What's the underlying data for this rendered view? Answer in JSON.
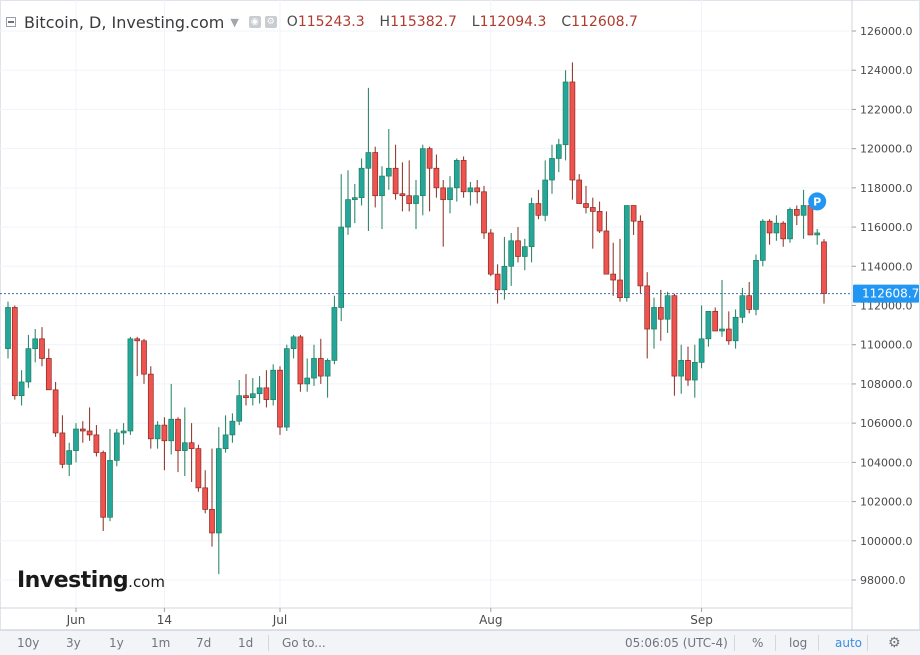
{
  "header": {
    "title": "Bitcoin, D, Investing.com",
    "ohlc": [
      {
        "key": "O",
        "value": "115243.3"
      },
      {
        "key": "H",
        "value": "115382.7"
      },
      {
        "key": "L",
        "value": "112094.3"
      },
      {
        "key": "C",
        "value": "112608.7"
      }
    ]
  },
  "watermark": {
    "brand": "Investing",
    "tld": ".com"
  },
  "last_price_label": "112608.7",
  "marker_label": "P",
  "colors": {
    "up": "#26a69a",
    "down": "#ef5350",
    "up_border": "#1e7f5c",
    "down_border": "#8a2a1f",
    "accent": "#2196f3",
    "price_line": "#3f6fa3"
  },
  "toolbar": {
    "ranges": [
      "10y",
      "3y",
      "1y",
      "1m",
      "7d",
      "1d"
    ],
    "goto": "Go to...",
    "time": "05:06:05 (UTC-4)",
    "percent": "%",
    "log": "log",
    "auto": "auto"
  },
  "chart_data": {
    "type": "candlestick",
    "y_ticks": [
      "98000.0",
      "100000.0",
      "102000.0",
      "104000.0",
      "106000.0",
      "108000.0",
      "110000.0",
      "112000.0",
      "114000.0",
      "116000.0",
      "118000.0",
      "120000.0",
      "122000.0",
      "124000.0",
      "126000.0"
    ],
    "ylim": [
      97000,
      127000
    ],
    "x_labels": [
      {
        "label": "Jun",
        "index": 10
      },
      {
        "label": "14",
        "index": 23
      },
      {
        "label": "Jul",
        "index": 40
      },
      {
        "label": "Aug",
        "index": 71
      },
      {
        "label": "Sep",
        "index": 102
      }
    ],
    "last_price": 112608.7,
    "marker_index": 119,
    "marker_value": 116900,
    "candles": [
      {
        "o": 109800,
        "h": 112200,
        "l": 109300,
        "c": 111900
      },
      {
        "o": 111900,
        "h": 112000,
        "l": 107200,
        "c": 107400
      },
      {
        "o": 107400,
        "h": 108700,
        "l": 106900,
        "c": 108100
      },
      {
        "o": 108100,
        "h": 110500,
        "l": 107800,
        "c": 109800
      },
      {
        "o": 109800,
        "h": 110800,
        "l": 109100,
        "c": 110300
      },
      {
        "o": 110300,
        "h": 110900,
        "l": 108900,
        "c": 109300
      },
      {
        "o": 109300,
        "h": 109800,
        "l": 107700,
        "c": 107700
      },
      {
        "o": 107700,
        "h": 108100,
        "l": 105300,
        "c": 105500
      },
      {
        "o": 105500,
        "h": 106400,
        "l": 103700,
        "c": 103900
      },
      {
        "o": 103900,
        "h": 105000,
        "l": 103300,
        "c": 104600
      },
      {
        "o": 104600,
        "h": 106000,
        "l": 104000,
        "c": 105700
      },
      {
        "o": 105700,
        "h": 106100,
        "l": 105000,
        "c": 105600
      },
      {
        "o": 105600,
        "h": 106800,
        "l": 105100,
        "c": 105400
      },
      {
        "o": 105400,
        "h": 105900,
        "l": 104300,
        "c": 104500
      },
      {
        "o": 104500,
        "h": 104600,
        "l": 100500,
        "c": 101200
      },
      {
        "o": 101200,
        "h": 105700,
        "l": 101000,
        "c": 104100
      },
      {
        "o": 104100,
        "h": 105700,
        "l": 103800,
        "c": 105500
      },
      {
        "o": 105500,
        "h": 106000,
        "l": 104900,
        "c": 105600
      },
      {
        "o": 105600,
        "h": 110400,
        "l": 105400,
        "c": 110300
      },
      {
        "o": 110300,
        "h": 110400,
        "l": 108400,
        "c": 110200
      },
      {
        "o": 110200,
        "h": 110300,
        "l": 108000,
        "c": 108500
      },
      {
        "o": 108500,
        "h": 108900,
        "l": 104700,
        "c": 105200
      },
      {
        "o": 105200,
        "h": 106100,
        "l": 104700,
        "c": 105900
      },
      {
        "o": 105900,
        "h": 106300,
        "l": 103600,
        "c": 105100
      },
      {
        "o": 105100,
        "h": 108000,
        "l": 104400,
        "c": 106200
      },
      {
        "o": 106200,
        "h": 106300,
        "l": 103500,
        "c": 104600
      },
      {
        "o": 104600,
        "h": 106800,
        "l": 103300,
        "c": 105000
      },
      {
        "o": 105000,
        "h": 106000,
        "l": 103000,
        "c": 104700
      },
      {
        "o": 104700,
        "h": 104900,
        "l": 102500,
        "c": 102700
      },
      {
        "o": 102700,
        "h": 103600,
        "l": 101400,
        "c": 101600
      },
      {
        "o": 101600,
        "h": 104700,
        "l": 99700,
        "c": 100400
      },
      {
        "o": 100400,
        "h": 105800,
        "l": 98300,
        "c": 104700
      },
      {
        "o": 104700,
        "h": 106400,
        "l": 104500,
        "c": 105400
      },
      {
        "o": 105400,
        "h": 106500,
        "l": 105000,
        "c": 106100
      },
      {
        "o": 106100,
        "h": 108200,
        "l": 105900,
        "c": 107400
      },
      {
        "o": 107400,
        "h": 108500,
        "l": 106900,
        "c": 107300
      },
      {
        "o": 107300,
        "h": 108300,
        "l": 106900,
        "c": 107500
      },
      {
        "o": 107500,
        "h": 108400,
        "l": 107000,
        "c": 107800
      },
      {
        "o": 107800,
        "h": 108700,
        "l": 106800,
        "c": 107200
      },
      {
        "o": 107200,
        "h": 109000,
        "l": 106900,
        "c": 108700
      },
      {
        "o": 108700,
        "h": 108900,
        "l": 105400,
        "c": 105800
      },
      {
        "o": 105800,
        "h": 110000,
        "l": 105600,
        "c": 109800
      },
      {
        "o": 109800,
        "h": 110500,
        "l": 109300,
        "c": 110400
      },
      {
        "o": 110400,
        "h": 110500,
        "l": 107600,
        "c": 108000
      },
      {
        "o": 108000,
        "h": 109300,
        "l": 107600,
        "c": 108300
      },
      {
        "o": 108300,
        "h": 110000,
        "l": 107900,
        "c": 109300
      },
      {
        "o": 109300,
        "h": 110300,
        "l": 108000,
        "c": 108400
      },
      {
        "o": 108400,
        "h": 109300,
        "l": 107300,
        "c": 109200
      },
      {
        "o": 109200,
        "h": 112500,
        "l": 109000,
        "c": 111900
      },
      {
        "o": 111900,
        "h": 118700,
        "l": 111200,
        "c": 116000
      },
      {
        "o": 116000,
        "h": 118900,
        "l": 115600,
        "c": 117400
      },
      {
        "o": 117400,
        "h": 118200,
        "l": 116200,
        "c": 117500
      },
      {
        "o": 117500,
        "h": 119500,
        "l": 117100,
        "c": 119000
      },
      {
        "o": 119000,
        "h": 123100,
        "l": 115800,
        "c": 119800
      },
      {
        "o": 119800,
        "h": 120100,
        "l": 117000,
        "c": 117600
      },
      {
        "o": 117600,
        "h": 119100,
        "l": 115900,
        "c": 118600
      },
      {
        "o": 118600,
        "h": 121000,
        "l": 117900,
        "c": 119000
      },
      {
        "o": 119000,
        "h": 120200,
        "l": 117400,
        "c": 117700
      },
      {
        "o": 117700,
        "h": 119300,
        "l": 116800,
        "c": 117600
      },
      {
        "o": 117600,
        "h": 119400,
        "l": 116800,
        "c": 117200
      },
      {
        "o": 117200,
        "h": 118400,
        "l": 115900,
        "c": 117600
      },
      {
        "o": 117600,
        "h": 120200,
        "l": 116600,
        "c": 120000
      },
      {
        "o": 120000,
        "h": 120100,
        "l": 116800,
        "c": 119000
      },
      {
        "o": 119000,
        "h": 119700,
        "l": 117500,
        "c": 118000
      },
      {
        "o": 118000,
        "h": 118400,
        "l": 115000,
        "c": 117400
      },
      {
        "o": 117400,
        "h": 118600,
        "l": 116700,
        "c": 118000
      },
      {
        "o": 118000,
        "h": 119500,
        "l": 117300,
        "c": 119400
      },
      {
        "o": 119400,
        "h": 119600,
        "l": 117500,
        "c": 117800
      },
      {
        "o": 117800,
        "h": 118300,
        "l": 117100,
        "c": 118000
      },
      {
        "o": 118000,
        "h": 118400,
        "l": 117200,
        "c": 117800
      },
      {
        "o": 117800,
        "h": 118100,
        "l": 115400,
        "c": 115700
      },
      {
        "o": 115700,
        "h": 115900,
        "l": 113500,
        "c": 113600
      },
      {
        "o": 113600,
        "h": 114100,
        "l": 112100,
        "c": 112800
      },
      {
        "o": 112800,
        "h": 115500,
        "l": 112300,
        "c": 114000
      },
      {
        "o": 114000,
        "h": 115700,
        "l": 113000,
        "c": 115300
      },
      {
        "o": 115300,
        "h": 116000,
        "l": 114200,
        "c": 114500
      },
      {
        "o": 114500,
        "h": 115400,
        "l": 113800,
        "c": 115000
      },
      {
        "o": 115000,
        "h": 117500,
        "l": 114200,
        "c": 117200
      },
      {
        "o": 117200,
        "h": 117900,
        "l": 116400,
        "c": 116600
      },
      {
        "o": 116600,
        "h": 119400,
        "l": 116300,
        "c": 118400
      },
      {
        "o": 118400,
        "h": 120200,
        "l": 117700,
        "c": 119500
      },
      {
        "o": 119500,
        "h": 120500,
        "l": 118800,
        "c": 120200
      },
      {
        "o": 120200,
        "h": 124000,
        "l": 119400,
        "c": 123400
      },
      {
        "o": 123400,
        "h": 124400,
        "l": 117400,
        "c": 118400
      },
      {
        "o": 118400,
        "h": 118700,
        "l": 117200,
        "c": 117200
      },
      {
        "o": 117200,
        "h": 118100,
        "l": 116700,
        "c": 117000
      },
      {
        "o": 117000,
        "h": 117500,
        "l": 114900,
        "c": 116800
      },
      {
        "o": 116800,
        "h": 117300,
        "l": 115700,
        "c": 115800
      },
      {
        "o": 115800,
        "h": 116800,
        "l": 113800,
        "c": 113600
      },
      {
        "o": 113600,
        "h": 115200,
        "l": 112500,
        "c": 113300
      },
      {
        "o": 113300,
        "h": 115400,
        "l": 112200,
        "c": 112400
      },
      {
        "o": 112400,
        "h": 117100,
        "l": 112200,
        "c": 117100
      },
      {
        "o": 117100,
        "h": 117100,
        "l": 115600,
        "c": 116300
      },
      {
        "o": 116300,
        "h": 116600,
        "l": 112600,
        "c": 113000
      },
      {
        "o": 113000,
        "h": 113700,
        "l": 109300,
        "c": 110800
      },
      {
        "o": 110800,
        "h": 112400,
        "l": 109800,
        "c": 111900
      },
      {
        "o": 111900,
        "h": 112800,
        "l": 110200,
        "c": 111300
      },
      {
        "o": 111300,
        "h": 112700,
        "l": 110600,
        "c": 112500
      },
      {
        "o": 112500,
        "h": 112600,
        "l": 107400,
        "c": 108400
      },
      {
        "o": 108400,
        "h": 110000,
        "l": 107500,
        "c": 109200
      },
      {
        "o": 109200,
        "h": 109900,
        "l": 107900,
        "c": 108200
      },
      {
        "o": 108200,
        "h": 110000,
        "l": 107300,
        "c": 109100
      },
      {
        "o": 109100,
        "h": 112000,
        "l": 108800,
        "c": 110300
      },
      {
        "o": 110300,
        "h": 111500,
        "l": 109900,
        "c": 111700
      },
      {
        "o": 111700,
        "h": 111900,
        "l": 110700,
        "c": 110700
      },
      {
        "o": 110700,
        "h": 113300,
        "l": 110400,
        "c": 110800
      },
      {
        "o": 110800,
        "h": 111700,
        "l": 110000,
        "c": 110200
      },
      {
        "o": 110200,
        "h": 111800,
        "l": 109800,
        "c": 111400
      },
      {
        "o": 111400,
        "h": 112900,
        "l": 111100,
        "c": 112500
      },
      {
        "o": 112500,
        "h": 113200,
        "l": 111600,
        "c": 111800
      },
      {
        "o": 111800,
        "h": 114600,
        "l": 111500,
        "c": 114300
      },
      {
        "o": 114300,
        "h": 116400,
        "l": 114000,
        "c": 116300
      },
      {
        "o": 116300,
        "h": 116400,
        "l": 115100,
        "c": 115700
      },
      {
        "o": 115700,
        "h": 116600,
        "l": 115300,
        "c": 116200
      },
      {
        "o": 116200,
        "h": 116300,
        "l": 115000,
        "c": 115400
      },
      {
        "o": 115400,
        "h": 117000,
        "l": 115200,
        "c": 116900
      },
      {
        "o": 116900,
        "h": 117100,
        "l": 116100,
        "c": 116600
      },
      {
        "o": 116600,
        "h": 117900,
        "l": 115400,
        "c": 117100
      },
      {
        "o": 117100,
        "h": 117300,
        "l": 115600,
        "c": 115600
      },
      {
        "o": 115600,
        "h": 115900,
        "l": 115100,
        "c": 115700
      },
      {
        "o": 115243.3,
        "h": 115382.7,
        "l": 112094.3,
        "c": 112608.7
      }
    ]
  }
}
